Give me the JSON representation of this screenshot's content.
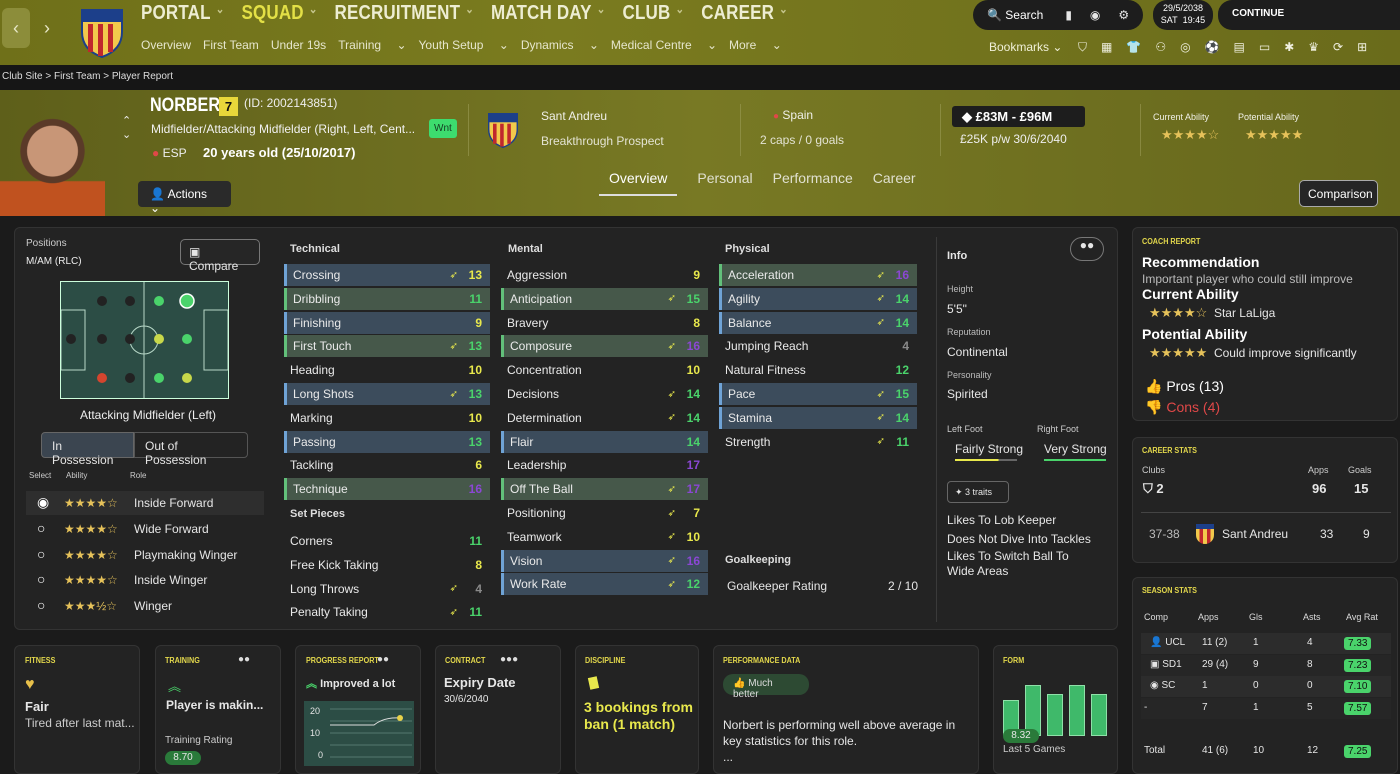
{
  "nav": {
    "menu": [
      "PORTAL",
      "SQUAD",
      "RECRUITMENT",
      "MATCH DAY",
      "CLUB",
      "CAREER"
    ],
    "active": "SQUAD",
    "sub": [
      "Overview",
      "First Team",
      "Under 19s",
      "Training",
      "Youth Setup",
      "Dynamics",
      "Medical Centre",
      "More"
    ],
    "search": "Search",
    "date": "29/5/2038",
    "day": "SAT",
    "time": "19:45",
    "continue": "CONTINUE",
    "bookmarks": "Bookmarks"
  },
  "crumb": "Club Site > First Team > Player Report",
  "player": {
    "name": "NORBERT",
    "number": "7",
    "id": "(ID: 2002143851)",
    "position": "Midfielder/Attacking Midfielder (Right, Left, Cent...",
    "nat": "ESP",
    "age": "20 years old (25/10/2017)",
    "wnt": "Wnt",
    "club": "Sant Andreu",
    "role": "Breakthrough Prospect",
    "country": "Spain",
    "caps": "2 caps / 0 goals",
    "value": "£83M - £96M",
    "wage": "£25K p/w 30/6/2040",
    "ca_label": "Current Ability",
    "pa_label": "Potential Ability",
    "ca_stars": "★★★★☆",
    "pa_stars": "★★★★★"
  },
  "tabs": [
    "Overview",
    "Personal",
    "Performance",
    "Career"
  ],
  "actions": "Actions",
  "comparison": "Comparison",
  "positions": {
    "title": "Positions",
    "value": "M/AM (RLC)",
    "compare": "Compare",
    "role": "Attacking Midfielder (Left)",
    "inpos": "In Possession",
    "outpos": "Out of Possession",
    "cols": [
      "Select",
      "Ability",
      "Role"
    ],
    "roles": [
      {
        "stars": "★★★★☆",
        "name": "Inside Forward"
      },
      {
        "stars": "★★★★☆",
        "name": "Wide Forward"
      },
      {
        "stars": "★★★★☆",
        "name": "Playmaking Winger"
      },
      {
        "stars": "★★★★☆",
        "name": "Inside Winger"
      },
      {
        "stars": "★★★½☆",
        "name": "Winger"
      }
    ]
  },
  "technical": {
    "title": "Technical",
    "rows": [
      [
        "Crossing",
        "13"
      ],
      [
        "Dribbling",
        "11"
      ],
      [
        "Finishing",
        "9"
      ],
      [
        "First Touch",
        "13"
      ],
      [
        "Heading",
        "10"
      ],
      [
        "Long Shots",
        "13"
      ],
      [
        "Marking",
        "10"
      ],
      [
        "Passing",
        "13"
      ],
      [
        "Tackling",
        "6"
      ],
      [
        "Technique",
        "16"
      ]
    ]
  },
  "setpieces": {
    "title": "Set Pieces",
    "rows": [
      [
        "Corners",
        "11"
      ],
      [
        "Free Kick Taking",
        "8"
      ],
      [
        "Long Throws",
        "4"
      ],
      [
        "Penalty Taking",
        "11"
      ]
    ]
  },
  "mental": {
    "title": "Mental",
    "rows": [
      [
        "Aggression",
        "9"
      ],
      [
        "Anticipation",
        "15"
      ],
      [
        "Bravery",
        "8"
      ],
      [
        "Composure",
        "16"
      ],
      [
        "Concentration",
        "10"
      ],
      [
        "Decisions",
        "14"
      ],
      [
        "Determination",
        "14"
      ],
      [
        "Flair",
        "14"
      ],
      [
        "Leadership",
        "17"
      ],
      [
        "Off The Ball",
        "17"
      ],
      [
        "Positioning",
        "7"
      ],
      [
        "Teamwork",
        "10"
      ],
      [
        "Vision",
        "16"
      ],
      [
        "Work Rate",
        "12"
      ]
    ]
  },
  "physical": {
    "title": "Physical",
    "rows": [
      [
        "Acceleration",
        "16"
      ],
      [
        "Agility",
        "14"
      ],
      [
        "Balance",
        "14"
      ],
      [
        "Jumping Reach",
        "4"
      ],
      [
        "Natural Fitness",
        "12"
      ],
      [
        "Pace",
        "15"
      ],
      [
        "Stamina",
        "14"
      ],
      [
        "Strength",
        "11"
      ]
    ]
  },
  "goalkeeping": {
    "title": "Goalkeeping",
    "label": "Goalkeeper Rating",
    "value": "2 / 10"
  },
  "info": {
    "title": "Info",
    "height_l": "Height",
    "height": "5'5\"",
    "rep_l": "Reputation",
    "rep": "Continental",
    "pers_l": "Personality",
    "pers": "Spirited",
    "lf_l": "Left Foot",
    "lf": "Fairly Strong",
    "rf_l": "Right Foot",
    "rf": "Very Strong",
    "traits_btn": "3 traits",
    "traits": [
      "Likes To Lob Keeper",
      "Does Not Dive Into Tackles",
      "Likes To Switch Ball To Wide Areas"
    ]
  },
  "coach": {
    "title": "COACH REPORT",
    "rec": "Recommendation",
    "rec_text": "Important player who could still improve",
    "ca": "Current Ability",
    "ca_stars": "★★★★☆",
    "ca_text": "Star LaLiga",
    "pa": "Potential Ability",
    "pa_stars": "★★★★★",
    "pa_text": "Could improve significantly",
    "pros": "Pros (13)",
    "cons": "Cons (4)"
  },
  "career": {
    "title": "CAREER STATS",
    "clubs_l": "Clubs",
    "clubs": "2",
    "apps_l": "Apps",
    "apps": "96",
    "goals_l": "Goals",
    "goals": "15",
    "row": {
      "season": "37-38",
      "club": "Sant Andreu",
      "apps": "33",
      "goals": "9"
    }
  },
  "season": {
    "title": "SEASON STATS",
    "cols": [
      "Comp",
      "Apps",
      "Gls",
      "Asts",
      "Avg Rat"
    ],
    "rows": [
      [
        "UCL",
        "11 (2)",
        "1",
        "4",
        "7.33"
      ],
      [
        "SD1",
        "29 (4)",
        "9",
        "8",
        "7.23"
      ],
      [
        "SC",
        "1",
        "0",
        "0",
        "7.10"
      ],
      [
        "-",
        "7",
        "1",
        "5",
        "7.57"
      ]
    ],
    "total": [
      "Total",
      "41 (6)",
      "10",
      "12",
      "7.25"
    ]
  },
  "fitness": {
    "title": "FITNESS",
    "state": "Fair",
    "note": "Tired after last mat..."
  },
  "training": {
    "title": "TRAINING",
    "state": "Player is makin...",
    "rating_l": "Training Rating",
    "rating": "8.70"
  },
  "progress": {
    "title": "PROGRESS REPORT",
    "state": "Improved a lot",
    "ticks": [
      "20",
      "10",
      "0"
    ]
  },
  "contract": {
    "title": "CONTRACT",
    "label": "Expiry Date",
    "date": "30/6/2040"
  },
  "discipline": {
    "title": "DISCIPLINE",
    "text": "3 bookings from ban (1 match)"
  },
  "perf": {
    "title": "PERFORMANCE DATA",
    "badge": "Much better",
    "text": "Norbert is performing well above average in key statistics for this role.",
    "more": "..."
  },
  "form": {
    "title": "FORM",
    "rating": "8.32",
    "label": "Last 5 Games",
    "values": [
      0.6,
      0.85,
      0.7,
      0.85,
      0.7
    ]
  },
  "colors": {
    "accent": "#e3d84c",
    "green": "#4ad36b",
    "purple": "#8b47d4",
    "blue_row": "#3c4c5c"
  }
}
